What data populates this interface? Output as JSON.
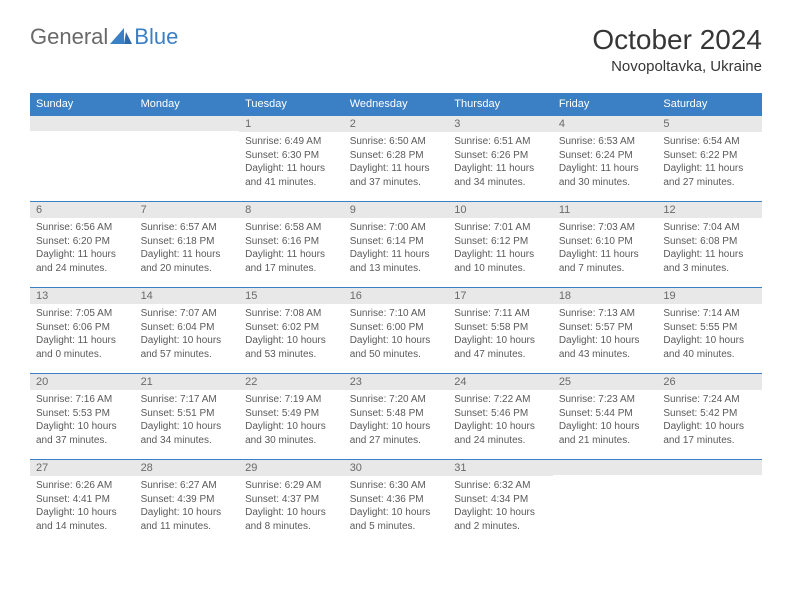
{
  "logo": {
    "text_general": "General",
    "text_blue": "Blue"
  },
  "title": "October 2024",
  "location": "Novopoltavka, Ukraine",
  "colors": {
    "header_bg": "#3b7fc4",
    "header_text": "#ffffff",
    "daynum_bg": "#e8e8e8",
    "daynum_border": "#3b7fc4",
    "text_muted": "#6a6a6a",
    "body_text": "#5a5a5a"
  },
  "weekdays": [
    "Sunday",
    "Monday",
    "Tuesday",
    "Wednesday",
    "Thursday",
    "Friday",
    "Saturday"
  ],
  "weeks": [
    [
      {
        "day": "",
        "sunrise": "",
        "sunset": "",
        "daylight": ""
      },
      {
        "day": "",
        "sunrise": "",
        "sunset": "",
        "daylight": ""
      },
      {
        "day": "1",
        "sunrise": "Sunrise: 6:49 AM",
        "sunset": "Sunset: 6:30 PM",
        "daylight": "Daylight: 11 hours and 41 minutes."
      },
      {
        "day": "2",
        "sunrise": "Sunrise: 6:50 AM",
        "sunset": "Sunset: 6:28 PM",
        "daylight": "Daylight: 11 hours and 37 minutes."
      },
      {
        "day": "3",
        "sunrise": "Sunrise: 6:51 AM",
        "sunset": "Sunset: 6:26 PM",
        "daylight": "Daylight: 11 hours and 34 minutes."
      },
      {
        "day": "4",
        "sunrise": "Sunrise: 6:53 AM",
        "sunset": "Sunset: 6:24 PM",
        "daylight": "Daylight: 11 hours and 30 minutes."
      },
      {
        "day": "5",
        "sunrise": "Sunrise: 6:54 AM",
        "sunset": "Sunset: 6:22 PM",
        "daylight": "Daylight: 11 hours and 27 minutes."
      }
    ],
    [
      {
        "day": "6",
        "sunrise": "Sunrise: 6:56 AM",
        "sunset": "Sunset: 6:20 PM",
        "daylight": "Daylight: 11 hours and 24 minutes."
      },
      {
        "day": "7",
        "sunrise": "Sunrise: 6:57 AM",
        "sunset": "Sunset: 6:18 PM",
        "daylight": "Daylight: 11 hours and 20 minutes."
      },
      {
        "day": "8",
        "sunrise": "Sunrise: 6:58 AM",
        "sunset": "Sunset: 6:16 PM",
        "daylight": "Daylight: 11 hours and 17 minutes."
      },
      {
        "day": "9",
        "sunrise": "Sunrise: 7:00 AM",
        "sunset": "Sunset: 6:14 PM",
        "daylight": "Daylight: 11 hours and 13 minutes."
      },
      {
        "day": "10",
        "sunrise": "Sunrise: 7:01 AM",
        "sunset": "Sunset: 6:12 PM",
        "daylight": "Daylight: 11 hours and 10 minutes."
      },
      {
        "day": "11",
        "sunrise": "Sunrise: 7:03 AM",
        "sunset": "Sunset: 6:10 PM",
        "daylight": "Daylight: 11 hours and 7 minutes."
      },
      {
        "day": "12",
        "sunrise": "Sunrise: 7:04 AM",
        "sunset": "Sunset: 6:08 PM",
        "daylight": "Daylight: 11 hours and 3 minutes."
      }
    ],
    [
      {
        "day": "13",
        "sunrise": "Sunrise: 7:05 AM",
        "sunset": "Sunset: 6:06 PM",
        "daylight": "Daylight: 11 hours and 0 minutes."
      },
      {
        "day": "14",
        "sunrise": "Sunrise: 7:07 AM",
        "sunset": "Sunset: 6:04 PM",
        "daylight": "Daylight: 10 hours and 57 minutes."
      },
      {
        "day": "15",
        "sunrise": "Sunrise: 7:08 AM",
        "sunset": "Sunset: 6:02 PM",
        "daylight": "Daylight: 10 hours and 53 minutes."
      },
      {
        "day": "16",
        "sunrise": "Sunrise: 7:10 AM",
        "sunset": "Sunset: 6:00 PM",
        "daylight": "Daylight: 10 hours and 50 minutes."
      },
      {
        "day": "17",
        "sunrise": "Sunrise: 7:11 AM",
        "sunset": "Sunset: 5:58 PM",
        "daylight": "Daylight: 10 hours and 47 minutes."
      },
      {
        "day": "18",
        "sunrise": "Sunrise: 7:13 AM",
        "sunset": "Sunset: 5:57 PM",
        "daylight": "Daylight: 10 hours and 43 minutes."
      },
      {
        "day": "19",
        "sunrise": "Sunrise: 7:14 AM",
        "sunset": "Sunset: 5:55 PM",
        "daylight": "Daylight: 10 hours and 40 minutes."
      }
    ],
    [
      {
        "day": "20",
        "sunrise": "Sunrise: 7:16 AM",
        "sunset": "Sunset: 5:53 PM",
        "daylight": "Daylight: 10 hours and 37 minutes."
      },
      {
        "day": "21",
        "sunrise": "Sunrise: 7:17 AM",
        "sunset": "Sunset: 5:51 PM",
        "daylight": "Daylight: 10 hours and 34 minutes."
      },
      {
        "day": "22",
        "sunrise": "Sunrise: 7:19 AM",
        "sunset": "Sunset: 5:49 PM",
        "daylight": "Daylight: 10 hours and 30 minutes."
      },
      {
        "day": "23",
        "sunrise": "Sunrise: 7:20 AM",
        "sunset": "Sunset: 5:48 PM",
        "daylight": "Daylight: 10 hours and 27 minutes."
      },
      {
        "day": "24",
        "sunrise": "Sunrise: 7:22 AM",
        "sunset": "Sunset: 5:46 PM",
        "daylight": "Daylight: 10 hours and 24 minutes."
      },
      {
        "day": "25",
        "sunrise": "Sunrise: 7:23 AM",
        "sunset": "Sunset: 5:44 PM",
        "daylight": "Daylight: 10 hours and 21 minutes."
      },
      {
        "day": "26",
        "sunrise": "Sunrise: 7:24 AM",
        "sunset": "Sunset: 5:42 PM",
        "daylight": "Daylight: 10 hours and 17 minutes."
      }
    ],
    [
      {
        "day": "27",
        "sunrise": "Sunrise: 6:26 AM",
        "sunset": "Sunset: 4:41 PM",
        "daylight": "Daylight: 10 hours and 14 minutes."
      },
      {
        "day": "28",
        "sunrise": "Sunrise: 6:27 AM",
        "sunset": "Sunset: 4:39 PM",
        "daylight": "Daylight: 10 hours and 11 minutes."
      },
      {
        "day": "29",
        "sunrise": "Sunrise: 6:29 AM",
        "sunset": "Sunset: 4:37 PM",
        "daylight": "Daylight: 10 hours and 8 minutes."
      },
      {
        "day": "30",
        "sunrise": "Sunrise: 6:30 AM",
        "sunset": "Sunset: 4:36 PM",
        "daylight": "Daylight: 10 hours and 5 minutes."
      },
      {
        "day": "31",
        "sunrise": "Sunrise: 6:32 AM",
        "sunset": "Sunset: 4:34 PM",
        "daylight": "Daylight: 10 hours and 2 minutes."
      },
      {
        "day": "",
        "sunrise": "",
        "sunset": "",
        "daylight": ""
      },
      {
        "day": "",
        "sunrise": "",
        "sunset": "",
        "daylight": ""
      }
    ]
  ]
}
